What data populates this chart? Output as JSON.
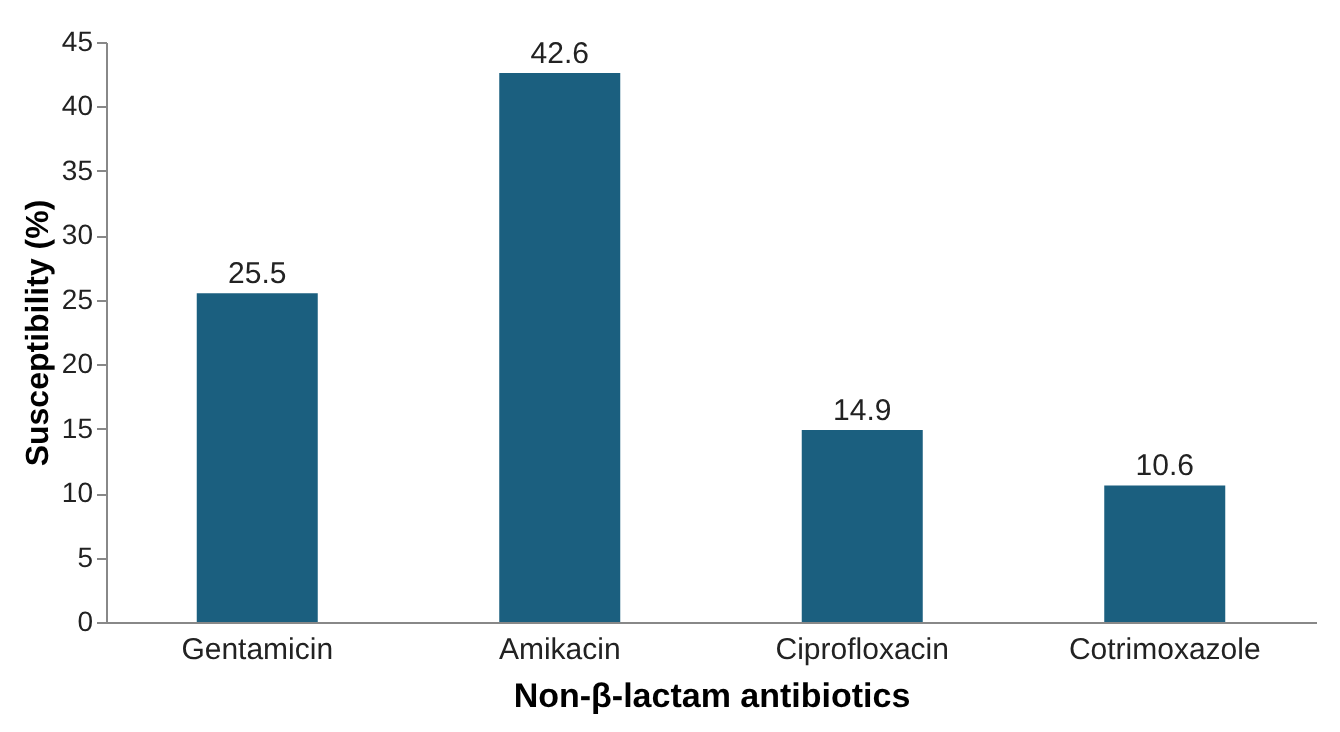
{
  "chart_data": {
    "type": "bar",
    "xlabel": "Non-β-lactam antibiotics",
    "ylabel": "Susceptibility (%)",
    "categories": [
      "Gentamicin",
      "Amikacin",
      "Ciprofloxacin",
      "Cotrimoxazole"
    ],
    "values": [
      25.5,
      42.6,
      14.9,
      10.6
    ],
    "color": "#1b5f7f",
    "ylim": [
      0,
      45
    ],
    "yticks": [
      0,
      5,
      10,
      15,
      20,
      25,
      30,
      35,
      40,
      45
    ],
    "grid": false,
    "data_labels": true
  }
}
